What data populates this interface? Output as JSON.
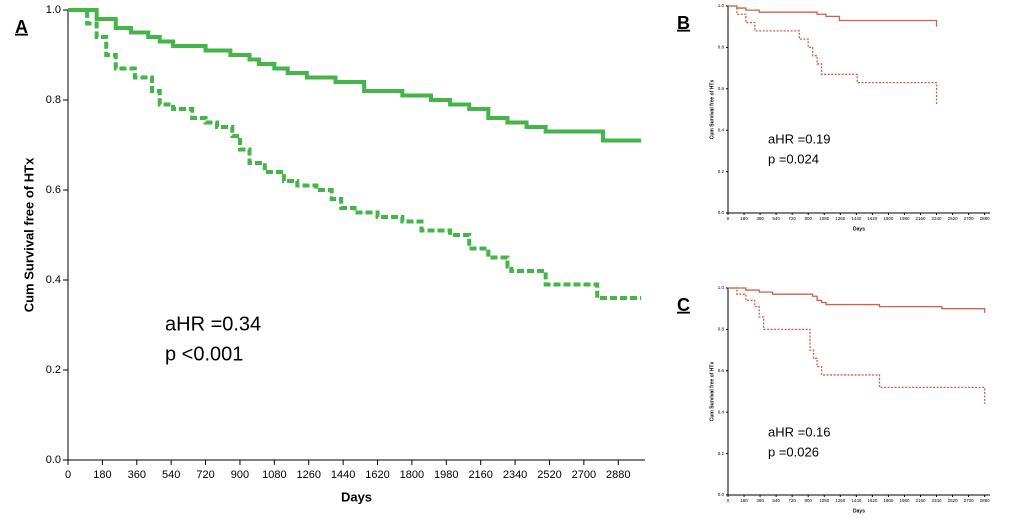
{
  "chart_data": [
    {
      "type": "step",
      "label": "A",
      "ylabel": "Cum Survival free of HTx",
      "xlabel": "Days",
      "annotations": [
        "aHR =0.34",
        "p <0.001"
      ],
      "xlim": [
        0,
        3020
      ],
      "ylim": [
        0,
        1
      ],
      "xticks": [
        0,
        180,
        360,
        540,
        720,
        900,
        1080,
        1260,
        1440,
        1620,
        1800,
        1980,
        2160,
        2340,
        2520,
        2700,
        2880
      ],
      "yticks": [
        {
          "value": 0,
          "label": "0.0"
        },
        0.2,
        0.4,
        0.6,
        0.8,
        {
          "value": 1,
          "label": "1.0"
        }
      ],
      "series": [
        {
          "color": "#44b549",
          "style": "solid",
          "x": [
            0,
            150,
            250,
            330,
            420,
            480,
            550,
            720,
            850,
            950,
            1000,
            1080,
            1150,
            1250,
            1400,
            1550,
            1750,
            1900,
            2000,
            2100,
            2200,
            2300,
            2400,
            2500,
            2800,
            3000
          ],
          "values": [
            1.0,
            0.98,
            0.96,
            0.95,
            0.94,
            0.93,
            0.92,
            0.91,
            0.9,
            0.89,
            0.88,
            0.87,
            0.86,
            0.85,
            0.84,
            0.82,
            0.81,
            0.8,
            0.79,
            0.78,
            0.76,
            0.75,
            0.74,
            0.73,
            0.71,
            0.71
          ]
        },
        {
          "color": "#44b549",
          "style": "dashed",
          "x": [
            0,
            100,
            150,
            200,
            250,
            350,
            440,
            480,
            550,
            650,
            720,
            780,
            860,
            900,
            950,
            1030,
            1130,
            1200,
            1300,
            1380,
            1430,
            1500,
            1620,
            1750,
            1850,
            2000,
            2100,
            2200,
            2300,
            2320,
            2500,
            2770,
            3000
          ],
          "values": [
            1.0,
            0.97,
            0.94,
            0.9,
            0.87,
            0.85,
            0.82,
            0.79,
            0.78,
            0.76,
            0.75,
            0.74,
            0.72,
            0.69,
            0.66,
            0.64,
            0.62,
            0.61,
            0.6,
            0.58,
            0.56,
            0.55,
            0.54,
            0.53,
            0.51,
            0.5,
            0.47,
            0.45,
            0.43,
            0.42,
            0.39,
            0.36,
            0.36
          ]
        }
      ]
    },
    {
      "type": "step",
      "label": "B",
      "ylabel": "Cum Survival free of HTx",
      "xlabel": "Days",
      "annotations": [
        "aHR =0.19",
        "p =0.024"
      ],
      "xlim": [
        0,
        2940
      ],
      "ylim": [
        0,
        1
      ],
      "xticks": [
        0,
        180,
        360,
        540,
        720,
        900,
        1080,
        1260,
        1440,
        1620,
        1800,
        1980,
        2160,
        2340,
        2520,
        2700,
        2880
      ],
      "yticks": [
        {
          "value": 0,
          "label": "0.0"
        },
        0.2,
        0.4,
        0.6,
        0.8,
        {
          "value": 1,
          "label": "1.0"
        }
      ],
      "series": [
        {
          "color": "#d0604a",
          "style": "solid",
          "x": [
            0,
            100,
            200,
            350,
            1000,
            1100,
            1250,
            2340
          ],
          "values": [
            1.0,
            0.99,
            0.98,
            0.97,
            0.96,
            0.95,
            0.93,
            0.9
          ]
        },
        {
          "color": "#d0604a",
          "style": "dotted",
          "x": [
            0,
            100,
            200,
            300,
            800,
            900,
            950,
            1000,
            1050,
            1450,
            2340
          ],
          "values": [
            1.0,
            0.96,
            0.92,
            0.88,
            0.84,
            0.8,
            0.76,
            0.72,
            0.67,
            0.63,
            0.52
          ]
        }
      ]
    },
    {
      "type": "step",
      "label": "C",
      "ylabel": "Cum Survival free of HTx",
      "xlabel": "Days",
      "annotations": [
        "aHR =0.16",
        "p =0.026"
      ],
      "xlim": [
        0,
        2940
      ],
      "ylim": [
        0,
        1
      ],
      "xticks": [
        0,
        180,
        360,
        540,
        720,
        900,
        1080,
        1260,
        1440,
        1620,
        1800,
        1980,
        2160,
        2340,
        2520,
        2700,
        2880
      ],
      "yticks": [
        {
          "value": 0,
          "label": "0.0"
        },
        0.2,
        0.4,
        0.6,
        0.8,
        {
          "value": 1,
          "label": "1.0"
        }
      ],
      "series": [
        {
          "color": "#d0604a",
          "style": "solid",
          "x": [
            0,
            200,
            350,
            500,
            950,
            1000,
            1050,
            1100,
            1700,
            2400,
            2880
          ],
          "values": [
            1.0,
            0.99,
            0.98,
            0.97,
            0.96,
            0.94,
            0.93,
            0.92,
            0.91,
            0.9,
            0.88
          ]
        },
        {
          "color": "#d0604a",
          "style": "dotted",
          "x": [
            0,
            100,
            200,
            300,
            350,
            400,
            900,
            920,
            960,
            1000,
            1050,
            1700,
            2880
          ],
          "values": [
            1.0,
            0.97,
            0.94,
            0.91,
            0.86,
            0.8,
            0.8,
            0.7,
            0.66,
            0.62,
            0.58,
            0.52,
            0.44
          ]
        }
      ]
    }
  ]
}
